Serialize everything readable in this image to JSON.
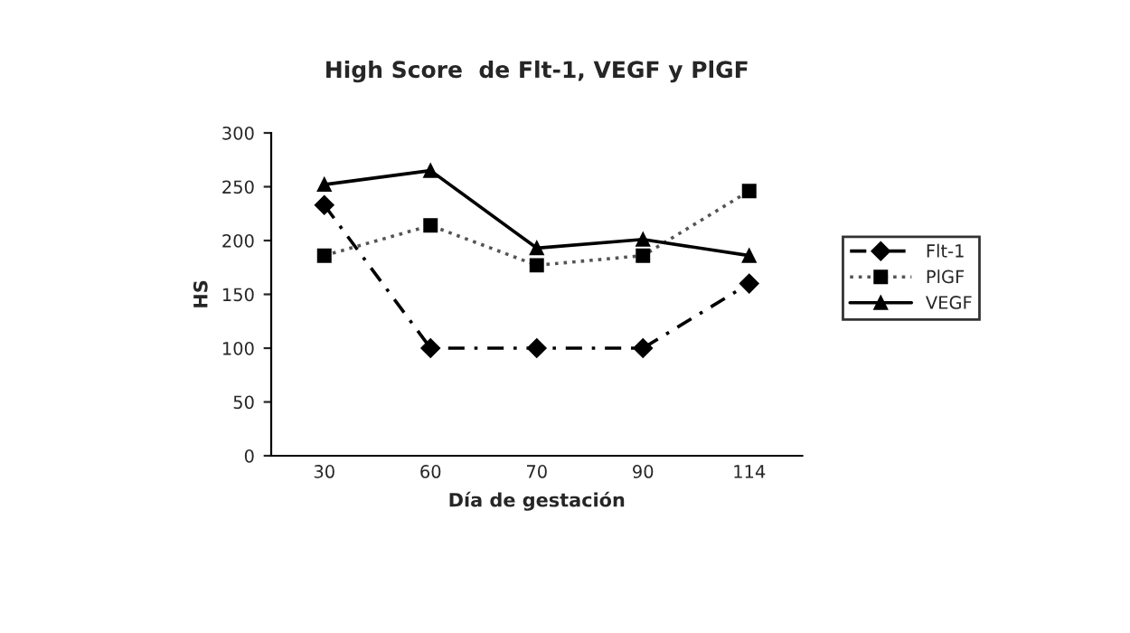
{
  "chart_data": {
    "type": "line",
    "title": "High Score  de Flt-1, VEGF y PlGF",
    "xlabel": "Día de gestación",
    "ylabel": "HS",
    "categories": [
      "30",
      "60",
      "70",
      "90",
      "114"
    ],
    "series": [
      {
        "name": "Flt-1",
        "color": "#000000",
        "marker": "diamond",
        "line_style": "dashed",
        "values": [
          233,
          100,
          100,
          100,
          160
        ]
      },
      {
        "name": "PlGF",
        "color": "#555555",
        "marker": "square",
        "line_style": "dotted",
        "values": [
          186,
          214,
          177,
          186,
          246
        ]
      },
      {
        "name": "VEGF",
        "color": "#000000",
        "marker": "triangle",
        "line_style": "solid",
        "values": [
          252,
          265,
          193,
          201,
          186
        ]
      }
    ],
    "ylim": [
      0,
      300
    ],
    "yticks": [
      0,
      50,
      100,
      150,
      200,
      250,
      300
    ],
    "grid": false,
    "legend": "right"
  }
}
